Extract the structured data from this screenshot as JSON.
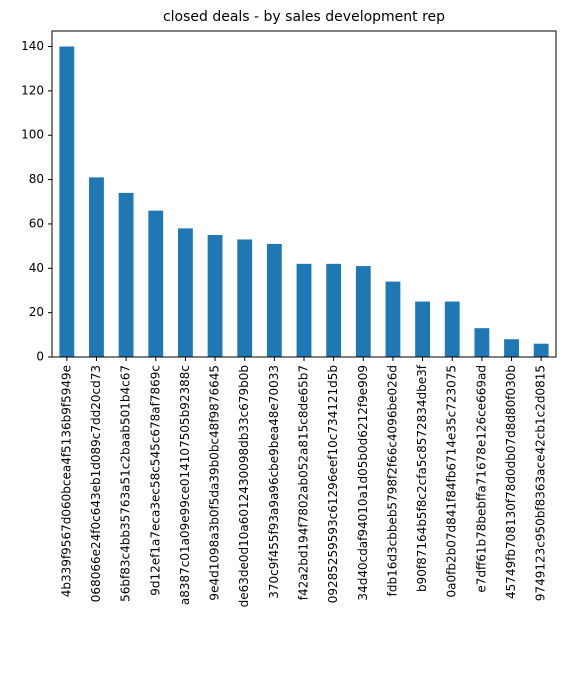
{
  "chart_data": {
    "type": "bar",
    "title": "closed deals - by sales development rep",
    "categories": [
      "4b339f9567d060bcea4f5136b9f5949e",
      "068066e24f0c643eb1d089c7dd20cd73",
      "56bf83c4bb35763a51c2baab501b4c67",
      "9d12ef1a7eca3ec58c545c678af7869c",
      "a8387c01a09e99ce014107505b92388c",
      "9e4d1098a3b0f5da39b0bc48f9876645",
      "de63de0d10a6012430098db33c679b0b",
      "370c9f455f93a9a96cbe9bea48e70033",
      "f42a2bd194f7802ab052a815c8de65b7",
      "09285259593c61296eef10c734121d5b",
      "34d40cdaf94010a1d05b0d6212f9e909",
      "fdb16d3cbbeb5798f2f66c4096be026d",
      "b90f87164b5f8c2cfa5c8572834dbe3f",
      "0a0fb2b07d841f84fb6714e35c723075",
      "e7dff61b78bebffa71678e126ce669ad",
      "45749fb708130f78d0db07d8d80f030b",
      "9749123c950bf8363ace42cb1c2d0815"
    ],
    "values": [
      140,
      81,
      74,
      66,
      58,
      55,
      53,
      51,
      42,
      42,
      41,
      34,
      25,
      25,
      13,
      8,
      6
    ],
    "color": "#1f77b4",
    "ylim": [
      0,
      147
    ],
    "yticks": [
      0,
      20,
      40,
      60,
      80,
      100,
      120,
      140
    ],
    "grid": false
  }
}
